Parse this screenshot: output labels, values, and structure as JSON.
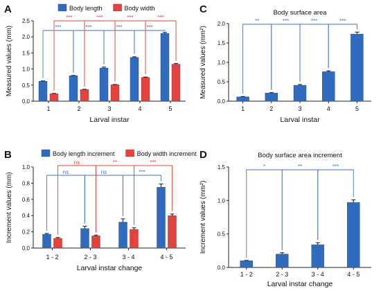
{
  "colors": {
    "blue": "#2f6bbf",
    "red": "#e8413a",
    "bracket_blue": "#4472c4",
    "bracket_red": "#e8413a",
    "axis": "#222222"
  },
  "chart_data": [
    {
      "panel_label": "A",
      "type": "bar",
      "title": "",
      "xlabel": "Larval instar",
      "ylabel": "Measured values (mm)",
      "categories": [
        "1",
        "2",
        "3",
        "4",
        "5"
      ],
      "ylim": [
        0,
        2.5
      ],
      "yticks": [
        "0.0",
        "0.5",
        "1.0",
        "1.5",
        "2.0",
        "2.5"
      ],
      "legend_position": "top",
      "series": [
        {
          "name": "Body length",
          "color": "blue",
          "values": [
            0.62,
            0.79,
            1.03,
            1.36,
            2.11
          ],
          "errors": [
            0.01,
            0.01,
            0.03,
            0.02,
            0.03
          ]
        },
        {
          "name": "Body width",
          "color": "red",
          "values": [
            0.23,
            0.36,
            0.51,
            0.74,
            1.15
          ],
          "errors": [
            0.01,
            0.01,
            0.01,
            0.01,
            0.02
          ]
        }
      ],
      "significance": [
        {
          "series": 0,
          "from": 0,
          "to": 1,
          "label": "***"
        },
        {
          "series": 0,
          "from": 1,
          "to": 2,
          "label": "***"
        },
        {
          "series": 0,
          "from": 2,
          "to": 3,
          "label": "***"
        },
        {
          "series": 0,
          "from": 3,
          "to": 4,
          "label": "***"
        },
        {
          "series": 1,
          "from": 0,
          "to": 1,
          "label": "***"
        },
        {
          "series": 1,
          "from": 1,
          "to": 2,
          "label": "***"
        },
        {
          "series": 1,
          "from": 2,
          "to": 3,
          "label": "***"
        },
        {
          "series": 1,
          "from": 3,
          "to": 4,
          "label": "***"
        }
      ]
    },
    {
      "panel_label": "B",
      "type": "bar",
      "title": "",
      "xlabel": "Larval instar change",
      "ylabel": "Increment values (mm)",
      "categories": [
        "1 - 2",
        "2 - 3",
        "3 - 4",
        "4 - 5"
      ],
      "ylim": [
        0,
        1.0
      ],
      "yticks": [
        "0.0",
        "0.2",
        "0.4",
        "0.6",
        "0.8",
        "1.0"
      ],
      "legend_position": "top",
      "series": [
        {
          "name": "Body length increment",
          "color": "blue",
          "values": [
            0.17,
            0.24,
            0.32,
            0.75
          ],
          "errors": [
            0.01,
            0.03,
            0.04,
            0.04
          ]
        },
        {
          "name": "Body width increment",
          "color": "red",
          "values": [
            0.12,
            0.15,
            0.23,
            0.4
          ],
          "errors": [
            0.01,
            0.01,
            0.02,
            0.02
          ]
        }
      ],
      "significance": [
        {
          "series": 0,
          "from": 0,
          "to": 1,
          "label": "ns"
        },
        {
          "series": 0,
          "from": 1,
          "to": 2,
          "label": "ns"
        },
        {
          "series": 0,
          "from": 2,
          "to": 3,
          "label": "***"
        },
        {
          "series": 1,
          "from": 0,
          "to": 1,
          "label": "ns"
        },
        {
          "series": 1,
          "from": 1,
          "to": 2,
          "label": "**"
        },
        {
          "series": 1,
          "from": 2,
          "to": 3,
          "label": "***"
        }
      ]
    },
    {
      "panel_label": "C",
      "type": "bar",
      "title": "Body surface area",
      "xlabel": "Larval instar",
      "ylabel": "Measured values (mm²)",
      "categories": [
        "1",
        "2",
        "3",
        "4",
        "5"
      ],
      "ylim": [
        0,
        2.0
      ],
      "yticks": [
        "0.0",
        "0.5",
        "1.0",
        "1.5",
        "2.0"
      ],
      "series": [
        {
          "name": "",
          "color": "blue",
          "values": [
            0.11,
            0.21,
            0.41,
            0.76,
            1.73
          ],
          "errors": [
            0.01,
            0.01,
            0.02,
            0.02,
            0.05
          ]
        }
      ],
      "significance": [
        {
          "series": 0,
          "from": 0,
          "to": 1,
          "label": "**"
        },
        {
          "series": 0,
          "from": 1,
          "to": 2,
          "label": "***"
        },
        {
          "series": 0,
          "from": 2,
          "to": 3,
          "label": "***"
        },
        {
          "series": 0,
          "from": 3,
          "to": 4,
          "label": "***"
        }
      ]
    },
    {
      "panel_label": "D",
      "type": "bar",
      "title": "Body surface area increment",
      "xlabel": "Larval instar change",
      "ylabel": "Increment values (mm²)",
      "categories": [
        "1 - 2",
        "2 - 3",
        "3 - 4",
        "4 - 5"
      ],
      "ylim": [
        0,
        1.5
      ],
      "yticks": [
        "0.0",
        "0.5",
        "1.0",
        "1.5"
      ],
      "series": [
        {
          "name": "",
          "color": "blue",
          "values": [
            0.1,
            0.2,
            0.34,
            0.97
          ],
          "errors": [
            0.005,
            0.02,
            0.03,
            0.04
          ]
        }
      ],
      "significance": [
        {
          "series": 0,
          "from": 0,
          "to": 1,
          "label": "*"
        },
        {
          "series": 0,
          "from": 1,
          "to": 2,
          "label": "**"
        },
        {
          "series": 0,
          "from": 2,
          "to": 3,
          "label": "***"
        }
      ]
    }
  ]
}
